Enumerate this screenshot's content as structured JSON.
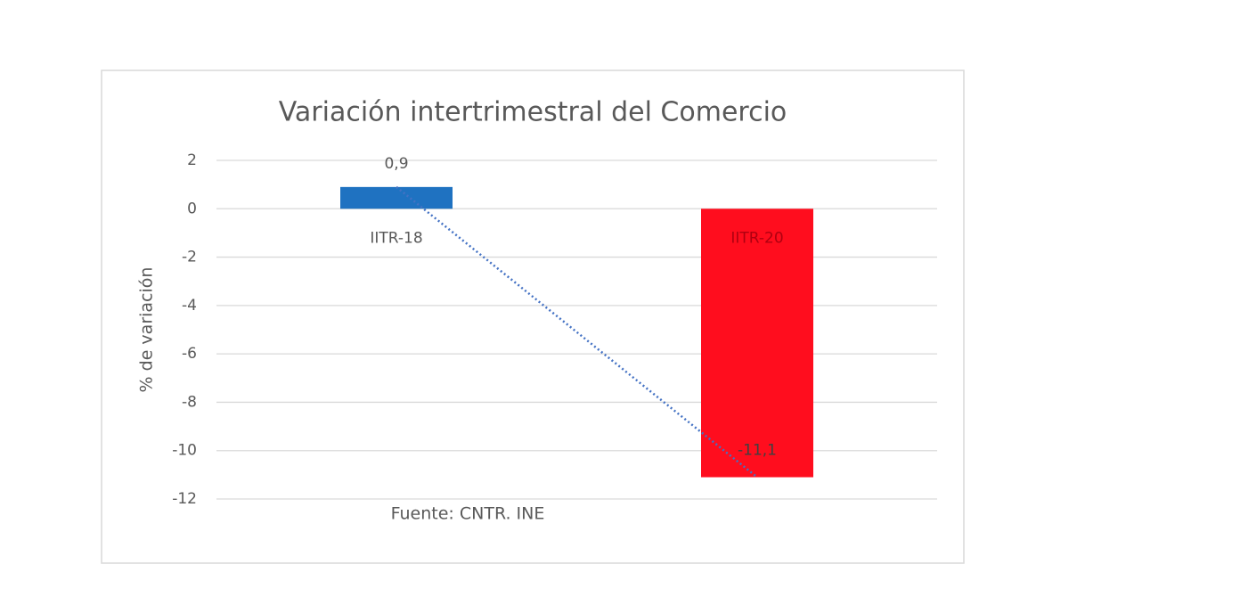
{
  "chart_data": {
    "type": "bar",
    "title": "Variación intertrimestral del Comercio",
    "y_label": "% de variación",
    "annotation": "Fuente: CNTR. INE",
    "categories": [
      "IITR-18",
      "IITR-20"
    ],
    "values": [
      0.9,
      -11.1
    ],
    "value_labels": [
      "0,9",
      "-11,1"
    ],
    "colors": [
      "#1f72c1",
      "#ff0d1e"
    ],
    "ylim": [
      -12,
      2
    ],
    "yticks": [
      -12,
      -10,
      -8,
      -6,
      -4,
      -2,
      0,
      2
    ],
    "grid": true,
    "trendline": true
  }
}
